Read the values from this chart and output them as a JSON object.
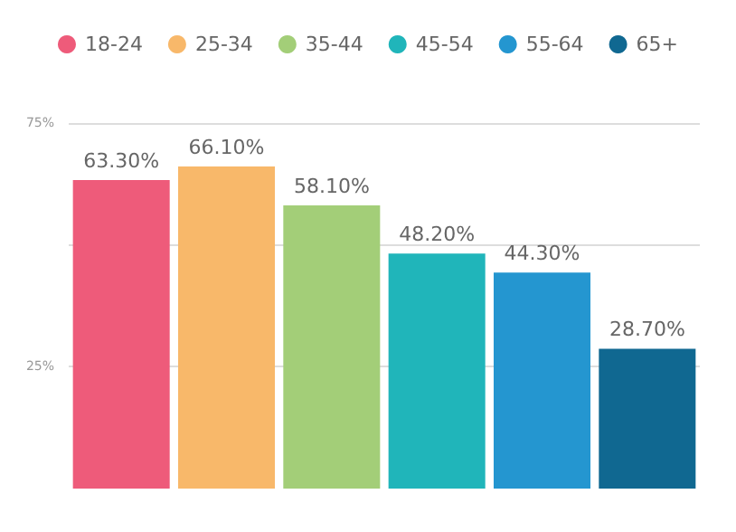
{
  "chart_data": {
    "type": "bar",
    "categories": [
      null,
      null,
      null,
      null,
      null,
      null
    ],
    "stacked": true,
    "ylim": [
      0,
      75
    ],
    "yticks": [
      {
        "value": 25,
        "label": "25%"
      },
      {
        "value": 50,
        "label": null
      },
      {
        "value": 75,
        "label": "75%"
      }
    ],
    "grid": "y",
    "legend": "top",
    "series": [
      {
        "name": "18-24",
        "color": "#ee5b7a",
        "values": [
          63.3,
          null,
          null,
          null,
          null,
          null
        ],
        "value_labels": [
          "63.30%",
          null,
          null,
          null,
          null,
          null
        ]
      },
      {
        "name": "25-34",
        "color": "#f8b86a",
        "values": [
          null,
          66.1,
          null,
          null,
          null,
          null
        ],
        "value_labels": [
          null,
          "66.10%",
          null,
          null,
          null,
          null
        ]
      },
      {
        "name": "35-44",
        "color": "#a3ce78",
        "values": [
          null,
          null,
          58.1,
          null,
          null,
          null
        ],
        "value_labels": [
          null,
          null,
          "58.10%",
          null,
          null,
          null
        ]
      },
      {
        "name": "45-54",
        "color": "#20b5ba",
        "values": [
          null,
          null,
          null,
          48.2,
          null,
          null
        ],
        "value_labels": [
          null,
          null,
          null,
          "48.20%",
          null,
          null
        ]
      },
      {
        "name": "55-64",
        "color": "#2496d0",
        "values": [
          null,
          null,
          null,
          null,
          44.3,
          null
        ],
        "value_labels": [
          null,
          null,
          null,
          null,
          "44.30%",
          null
        ]
      },
      {
        "name": "65+",
        "color": "#106891",
        "values": [
          null,
          null,
          null,
          null,
          null,
          28.7
        ],
        "value_labels": [
          null,
          null,
          null,
          null,
          null,
          "28.70%"
        ]
      }
    ]
  }
}
